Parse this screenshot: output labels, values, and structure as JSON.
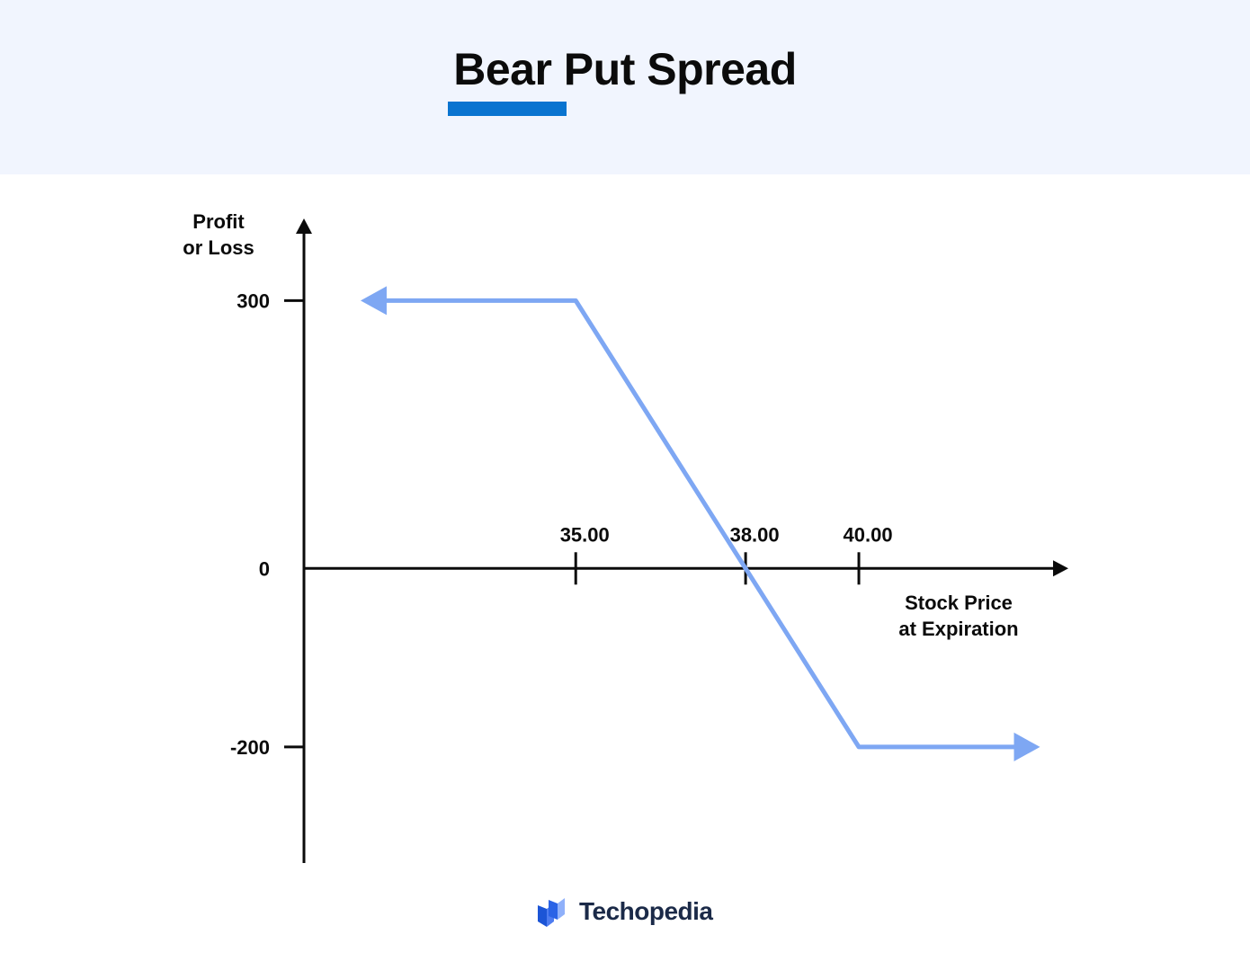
{
  "header": {
    "title": "Bear Put Spread",
    "background_color": "#f1f5fe",
    "accent_color": "#0a74d0"
  },
  "chart_data": {
    "type": "line",
    "title": "Bear Put Spread",
    "ylabel_lines": [
      "Profit",
      "or Loss"
    ],
    "xlabel_lines": [
      "Stock Price",
      "at Expiration"
    ],
    "y_ticks": [
      {
        "label": "300",
        "value": 300
      },
      {
        "label": "0",
        "value": 0
      },
      {
        "label": "-200",
        "value": -200
      }
    ],
    "x_ticks": [
      {
        "label": "35.00",
        "value": 35
      },
      {
        "label": "38.00",
        "value": 38
      },
      {
        "label": "40.00",
        "value": 40
      }
    ],
    "ylim": [
      -330,
      390
    ],
    "xlim": [
      30.2,
      43.7
    ],
    "grid": false,
    "series": [
      {
        "color": "#7ea7f3",
        "points": [
          {
            "x": 31.2,
            "y": 300
          },
          {
            "x": 35,
            "y": 300
          },
          {
            "x": 40,
            "y": -200
          },
          {
            "x": 43.2,
            "y": -200
          }
        ],
        "arrow_start": true,
        "arrow_end": true
      }
    ]
  },
  "brand": {
    "name": "Techopedia",
    "icon": "techopedia-logo-icon"
  }
}
